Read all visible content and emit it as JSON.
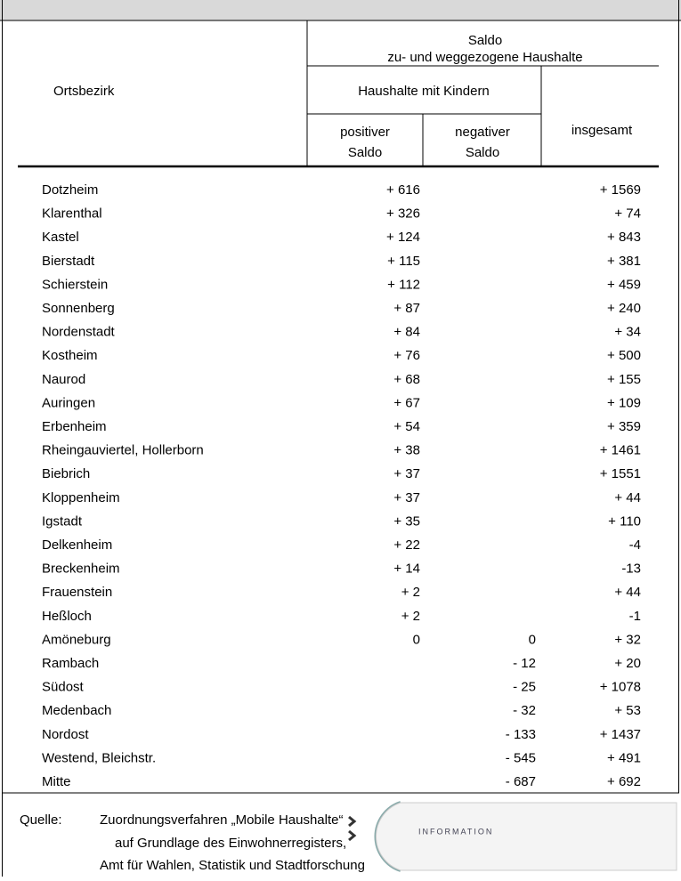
{
  "table": {
    "header": {
      "col0": "Ortsbezirk",
      "group": "Saldo",
      "group_sub": "zu- und weggezogene Haushalte",
      "kids": "Haushalte mit Kindern",
      "pos_1": "positiver",
      "pos_2": "Saldo",
      "neg_1": "negativer",
      "neg_2": "Saldo",
      "total": "insgesamt"
    },
    "rows": [
      [
        "Dotzheim",
        "+ 616",
        null,
        "+ 1569"
      ],
      [
        "Klarenthal",
        "+ 326",
        null,
        "+ 74"
      ],
      [
        "Kastel",
        "+ 124",
        null,
        "+ 843"
      ],
      [
        "Bierstadt",
        "+ 115",
        null,
        "+ 381"
      ],
      [
        "Schierstein",
        "+ 112",
        null,
        "+ 459"
      ],
      [
        "Sonnenberg",
        "+ 87",
        null,
        "+ 240"
      ],
      [
        "Nordenstadt",
        "+ 84",
        null,
        "+ 34"
      ],
      [
        "Kostheim",
        "+ 76",
        null,
        "+ 500"
      ],
      [
        "Naurod",
        "+ 68",
        null,
        "+ 155"
      ],
      [
        "Auringen",
        "+ 67",
        null,
        "+ 109"
      ],
      [
        "Erbenheim",
        "+ 54",
        null,
        "+ 359"
      ],
      [
        "Rheingauviertel, Hollerborn",
        "+ 38",
        null,
        "+ 1461"
      ],
      [
        "Biebrich",
        "+ 37",
        null,
        "+ 1551"
      ],
      [
        "Kloppenheim",
        "+ 37",
        null,
        "+ 44"
      ],
      [
        "Igstadt",
        "+ 35",
        null,
        "+ 110"
      ],
      [
        "Delkenheim",
        "+ 22",
        null,
        "-4"
      ],
      [
        "Breckenheim",
        "+ 14",
        null,
        "-13"
      ],
      [
        "Frauenstein",
        "+ 2",
        null,
        "+ 44"
      ],
      [
        "Heßloch",
        "+ 2",
        null,
        "-1"
      ],
      [
        "Amöneburg",
        "0",
        "0",
        "+ 32"
      ],
      [
        "Rambach",
        null,
        "- 12",
        "+ 20"
      ],
      [
        "Südost",
        null,
        "- 25",
        "+ 1078"
      ],
      [
        "Medenbach",
        null,
        "- 32",
        "+ 53"
      ],
      [
        "Nordost",
        null,
        "- 133",
        "+ 1437"
      ],
      [
        "Westend, Bleichstr.",
        null,
        "- 545",
        "+ 491"
      ],
      [
        "Mitte",
        null,
        "- 687",
        "+ 692"
      ]
    ]
  },
  "source": {
    "label": "Quelle:",
    "lines": [
      "Zuordnungsverfahren „Mobile Haushalte“",
      "auf Grundlage des Einwohnerregisters,",
      "Amt für Wahlen, Statistik und Stadtforschung"
    ]
  },
  "logo": {
    "text": "INFORMATION"
  }
}
